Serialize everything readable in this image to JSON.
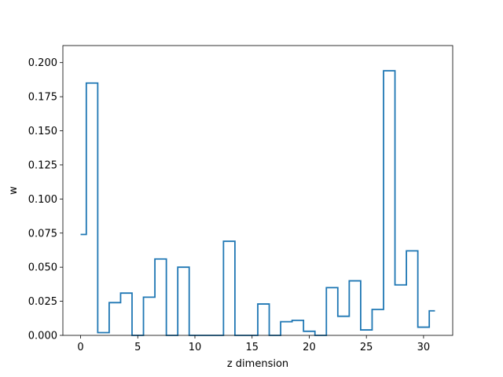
{
  "chart_data": {
    "type": "line",
    "style": "step",
    "step_where": "mid",
    "xlabel": "z dimension",
    "ylabel": "w",
    "xlim": [
      -1.55,
      32.55
    ],
    "ylim": [
      0,
      0.2125
    ],
    "grid": false,
    "xticks": [
      0,
      5,
      10,
      15,
      20,
      25,
      30
    ],
    "xtick_labels": [
      "0",
      "5",
      "10",
      "15",
      "20",
      "25",
      "30"
    ],
    "yticks": [
      0,
      0.025,
      0.05,
      0.075,
      0.1,
      0.125,
      0.15,
      0.175,
      0.2
    ],
    "ytick_labels": [
      "0.000",
      "0.025",
      "0.050",
      "0.075",
      "0.100",
      "0.125",
      "0.150",
      "0.175",
      "0.200"
    ],
    "series": [
      {
        "color": "#1f77b4",
        "x": [
          0,
          1,
          2,
          3,
          4,
          5,
          6,
          7,
          8,
          9,
          10,
          11,
          12,
          13,
          14,
          15,
          16,
          17,
          18,
          19,
          20,
          21,
          22,
          23,
          24,
          25,
          26,
          27,
          28,
          29,
          30,
          31
        ],
        "values": [
          0.074,
          0.185,
          0.002,
          0.024,
          0.031,
          0.0,
          0.028,
          0.056,
          0.0,
          0.05,
          0.0,
          0.0,
          0.0,
          0.069,
          0.0,
          0.0,
          0.023,
          0.0,
          0.01,
          0.011,
          0.003,
          0.0,
          0.035,
          0.014,
          0.04,
          0.004,
          0.019,
          0.194,
          0.037,
          0.062,
          0.006,
          0.018
        ]
      }
    ]
  }
}
